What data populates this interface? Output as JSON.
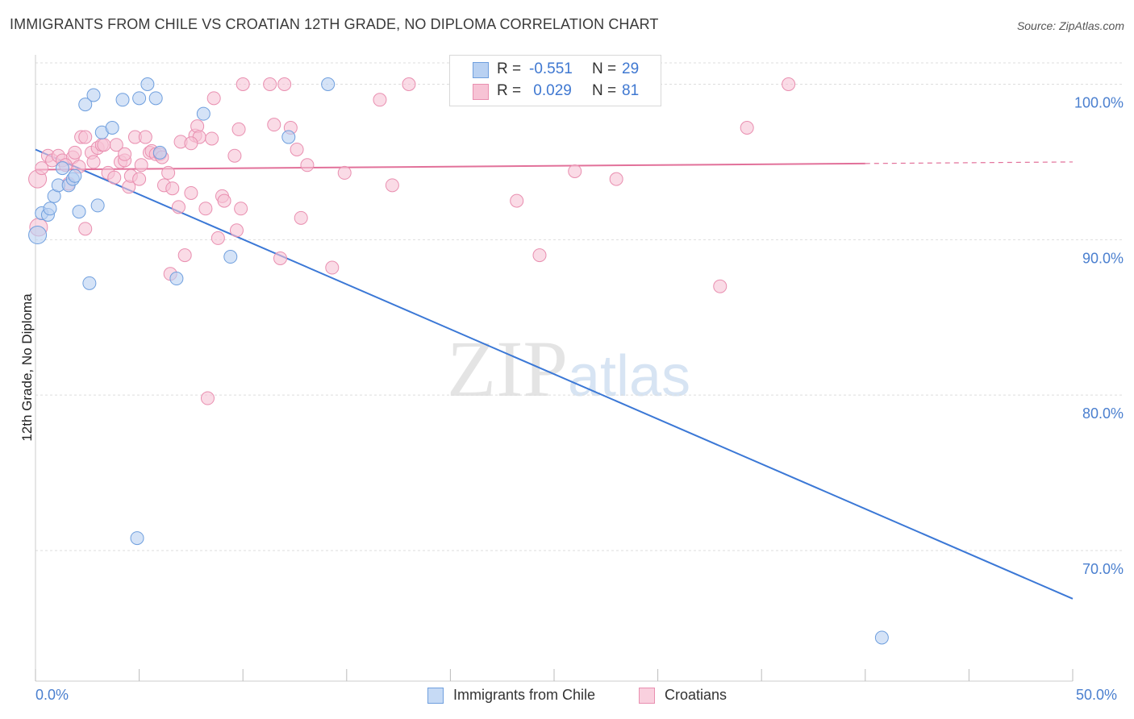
{
  "chart_data": {
    "type": "scatter",
    "title": "IMMIGRANTS FROM CHILE VS CROATIAN 12TH GRADE, NO DIPLOMA CORRELATION CHART",
    "source": "Source: ZipAtlas.com",
    "xlabel": "",
    "ylabel": "12th Grade, No Diploma",
    "xlim": [
      0,
      50
    ],
    "ylim": [
      61.6,
      102.1
    ],
    "x_tick_labels": [
      "0.0%",
      "50.0%"
    ],
    "y_ticks": [
      {
        "value": 100,
        "label": "100.0%"
      },
      {
        "value": 90,
        "label": "90.0%"
      },
      {
        "value": 80,
        "label": "80.0%"
      },
      {
        "value": 70,
        "label": "70.0%"
      }
    ],
    "grid": true,
    "watermark": {
      "zip": "ZIP",
      "atlas": "atlas"
    },
    "legend_top": {
      "r_label": "R =",
      "n_label": "N =",
      "rows": [
        {
          "series": "Immigrants from Chile",
          "r": "-0.551",
          "n": "29"
        },
        {
          "series": "Croatians",
          "r": " 0.029",
          "n": "81"
        }
      ]
    },
    "series": [
      {
        "name": "Immigrants from Chile",
        "color": "#6f9fde",
        "fill": "#b9d1f2",
        "trend": {
          "x0": 0,
          "y0": 95.8,
          "x1": 50,
          "y1": 66.9
        },
        "points": [
          [
            0.1,
            90.3
          ],
          [
            0.3,
            91.7
          ],
          [
            0.6,
            91.6
          ],
          [
            0.7,
            92.0
          ],
          [
            0.9,
            92.8
          ],
          [
            1.1,
            93.5
          ],
          [
            1.3,
            94.6
          ],
          [
            1.6,
            93.5
          ],
          [
            1.8,
            93.9
          ],
          [
            1.9,
            94.1
          ],
          [
            2.1,
            91.8
          ],
          [
            2.4,
            98.7
          ],
          [
            2.6,
            87.2
          ],
          [
            2.8,
            99.3
          ],
          [
            3.0,
            92.2
          ],
          [
            3.2,
            96.9
          ],
          [
            3.7,
            97.2
          ],
          [
            4.2,
            99.0
          ],
          [
            4.9,
            70.8
          ],
          [
            5.0,
            99.1
          ],
          [
            5.4,
            100.0
          ],
          [
            5.8,
            99.1
          ],
          [
            6.0,
            95.6
          ],
          [
            6.8,
            87.5
          ],
          [
            8.1,
            98.1
          ],
          [
            9.4,
            88.9
          ],
          [
            12.2,
            96.6
          ],
          [
            14.1,
            100.0
          ],
          [
            40.8,
            64.4
          ]
        ]
      },
      {
        "name": "Croatians",
        "color": "#e98fb0",
        "fill": "#f7c3d5",
        "trend": {
          "x0": 0,
          "y0": 94.5,
          "x1": 40,
          "y1": 94.9
        },
        "trend_dashed": {
          "x0": 40,
          "y0": 94.9,
          "x1": 50,
          "y1": 95.0
        },
        "points": [
          [
            0.1,
            93.9
          ],
          [
            0.3,
            94.6
          ],
          [
            0.6,
            95.4
          ],
          [
            0.8,
            95.1
          ],
          [
            1.1,
            95.4
          ],
          [
            1.3,
            95.1
          ],
          [
            1.6,
            93.6
          ],
          [
            1.8,
            95.3
          ],
          [
            1.9,
            95.6
          ],
          [
            2.1,
            94.7
          ],
          [
            2.2,
            96.6
          ],
          [
            2.4,
            96.6
          ],
          [
            2.4,
            90.7
          ],
          [
            2.7,
            95.6
          ],
          [
            2.8,
            95.0
          ],
          [
            3.0,
            95.9
          ],
          [
            3.2,
            96.1
          ],
          [
            3.3,
            96.1
          ],
          [
            3.5,
            94.3
          ],
          [
            3.8,
            94.0
          ],
          [
            3.9,
            96.1
          ],
          [
            4.1,
            95.0
          ],
          [
            4.3,
            95.1
          ],
          [
            4.3,
            95.5
          ],
          [
            4.5,
            93.4
          ],
          [
            4.6,
            94.1
          ],
          [
            4.8,
            96.6
          ],
          [
            5.0,
            93.9
          ],
          [
            5.1,
            94.8
          ],
          [
            5.3,
            96.6
          ],
          [
            5.5,
            95.6
          ],
          [
            5.6,
            95.7
          ],
          [
            5.8,
            95.5
          ],
          [
            6.0,
            95.5
          ],
          [
            6.1,
            95.3
          ],
          [
            6.2,
            93.5
          ],
          [
            6.4,
            94.3
          ],
          [
            6.5,
            87.8
          ],
          [
            6.6,
            93.3
          ],
          [
            6.9,
            92.1
          ],
          [
            7.0,
            96.3
          ],
          [
            7.2,
            89.0
          ],
          [
            7.5,
            93.0
          ],
          [
            7.7,
            96.7
          ],
          [
            7.8,
            97.3
          ],
          [
            7.9,
            96.6
          ],
          [
            8.2,
            92.0
          ],
          [
            8.3,
            79.8
          ],
          [
            8.5,
            96.5
          ],
          [
            8.6,
            99.1
          ],
          [
            8.8,
            90.1
          ],
          [
            9.0,
            92.8
          ],
          [
            9.1,
            92.5
          ],
          [
            9.6,
            95.4
          ],
          [
            9.7,
            90.6
          ],
          [
            9.8,
            97.1
          ],
          [
            9.9,
            92.0
          ],
          [
            10.0,
            100.0
          ],
          [
            11.3,
            100.0
          ],
          [
            11.5,
            97.4
          ],
          [
            11.8,
            88.8
          ],
          [
            12.0,
            100.0
          ],
          [
            12.3,
            97.2
          ],
          [
            12.6,
            95.8
          ],
          [
            12.8,
            91.4
          ],
          [
            13.1,
            94.8
          ],
          [
            14.3,
            88.2
          ],
          [
            14.9,
            94.3
          ],
          [
            16.6,
            99.0
          ],
          [
            17.2,
            93.5
          ],
          [
            18.0,
            100.0
          ],
          [
            23.2,
            92.5
          ],
          [
            24.3,
            89.0
          ],
          [
            26.0,
            94.4
          ],
          [
            28.0,
            93.9
          ],
          [
            33.0,
            87.0
          ],
          [
            34.3,
            97.2
          ],
          [
            36.3,
            100.0
          ],
          [
            0.15,
            90.8
          ],
          [
            1.45,
            94.8
          ],
          [
            7.5,
            96.2
          ]
        ]
      }
    ]
  }
}
